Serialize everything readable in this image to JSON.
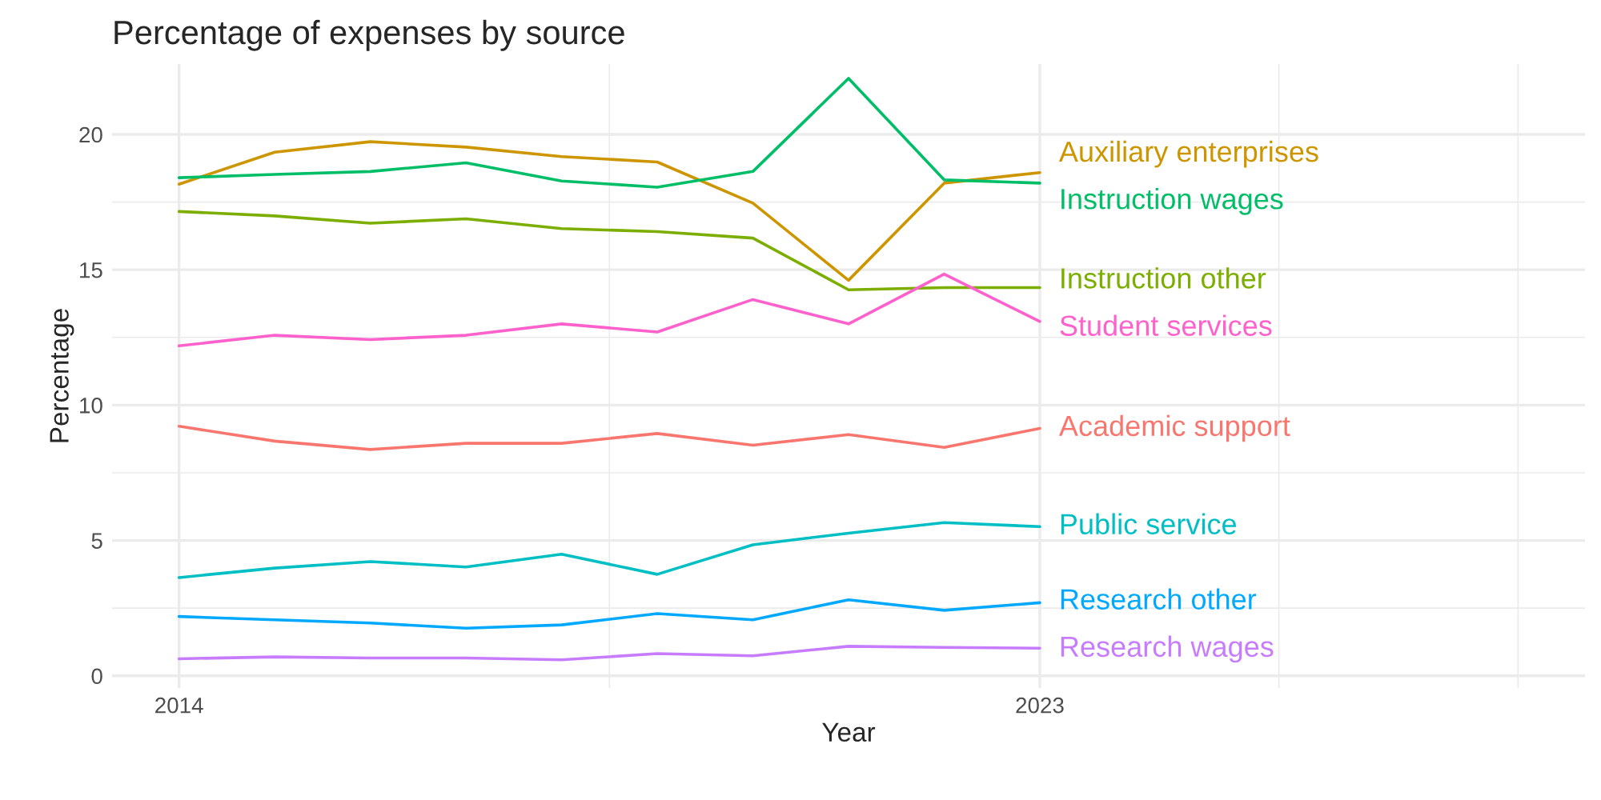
{
  "chart_data": {
    "type": "line",
    "title": "Percentage of expenses by source",
    "xlabel": "Year",
    "ylabel": "Percentage",
    "x": [
      2014,
      2015,
      2016,
      2017,
      2018,
      2019,
      2020,
      2021,
      2022,
      2023
    ],
    "series": [
      {
        "name": "Academic support",
        "color": "#f8766d",
        "values": [
          9.22,
          8.67,
          8.36,
          8.59,
          8.59,
          8.95,
          8.52,
          8.91,
          8.44,
          9.14
        ]
      },
      {
        "name": "Auxiliary enterprises",
        "color": "#cd9600",
        "values": [
          18.16,
          19.34,
          19.73,
          19.53,
          19.18,
          18.98,
          17.46,
          14.61,
          18.2,
          18.59
        ]
      },
      {
        "name": "Instruction other",
        "color": "#7cae00",
        "values": [
          17.15,
          16.99,
          16.72,
          16.88,
          16.52,
          16.41,
          16.17,
          14.26,
          14.34,
          14.34
        ]
      },
      {
        "name": "Instruction wages",
        "color": "#00be67",
        "values": [
          18.4,
          18.52,
          18.63,
          18.95,
          18.28,
          18.05,
          18.63,
          22.07,
          18.32,
          18.2
        ]
      },
      {
        "name": "Public service",
        "color": "#00bfc4",
        "values": [
          3.63,
          3.98,
          4.22,
          4.02,
          4.49,
          3.75,
          4.84,
          5.27,
          5.66,
          5.51
        ]
      },
      {
        "name": "Research other",
        "color": "#00a9ff",
        "values": [
          2.19,
          2.07,
          1.95,
          1.76,
          1.88,
          2.3,
          2.07,
          2.81,
          2.42,
          2.7
        ]
      },
      {
        "name": "Research wages",
        "color": "#c77cff",
        "values": [
          0.63,
          0.7,
          0.66,
          0.66,
          0.59,
          0.82,
          0.74,
          1.09,
          1.05,
          1.02
        ]
      },
      {
        "name": "Student services",
        "color": "#ff61cc",
        "values": [
          12.19,
          12.58,
          12.42,
          12.58,
          13.0,
          12.7,
          13.9,
          13.0,
          14.84,
          13.09
        ]
      }
    ],
    "xlim": [
      2013.3,
      2028.7
    ],
    "xticks": [
      2014,
      {
        "value": 2018.5,
        "label": null
      },
      2023,
      {
        "value": 2025.5,
        "label": null
      },
      {
        "value": 2028,
        "label": null
      }
    ],
    "ylim": [
      -0.45,
      22.6
    ],
    "yticks": [
      0,
      {
        "value": 2.5,
        "label": null
      },
      5,
      {
        "value": 7.5,
        "label": null
      },
      10,
      {
        "value": 12.5,
        "label": null
      },
      15,
      {
        "value": 17.5,
        "label": null
      },
      20
    ],
    "grid": true,
    "legend": false
  }
}
